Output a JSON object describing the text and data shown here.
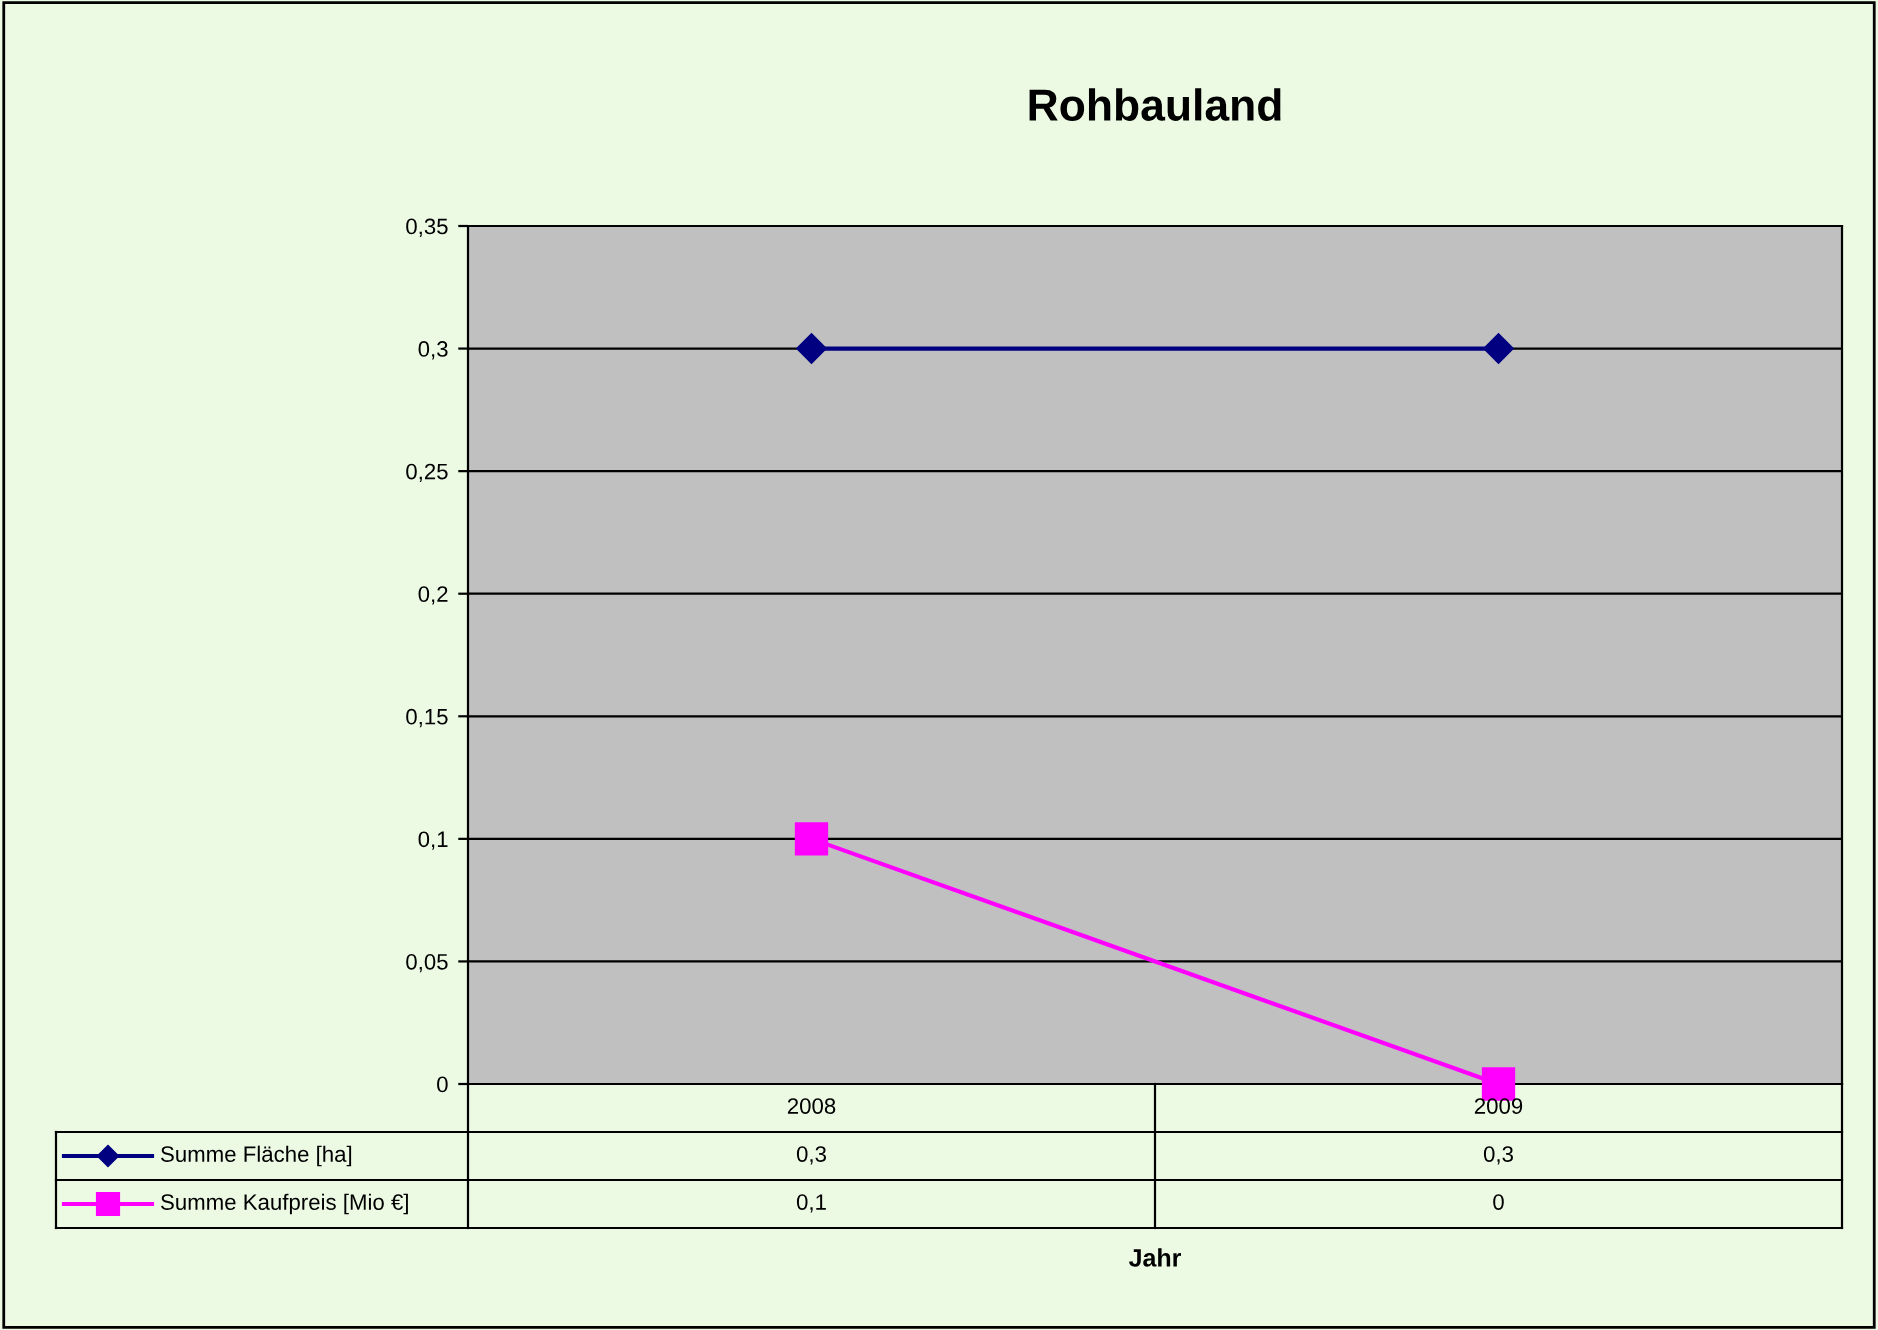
{
  "chart_data": {
    "type": "line",
    "title": "Rohbauland",
    "annotations": [
      "Jahr"
    ],
    "categories": [
      "2008",
      "2009"
    ],
    "series": [
      {
        "name": "Summe Fläche [ha]",
        "color": "#000080",
        "marker": "diamond",
        "values": [
          0.3,
          0.3
        ],
        "value_labels": [
          "0,3",
          "0,3"
        ]
      },
      {
        "name": "Summe Kaufpreis [Mio €]",
        "color": "#ff00ff",
        "marker": "square",
        "values": [
          0.1,
          0
        ],
        "value_labels": [
          "0,1",
          "0"
        ]
      }
    ],
    "ylim": [
      0,
      0.35
    ],
    "yticks": [
      {
        "value": 0,
        "label": "0"
      },
      {
        "value": 0.05,
        "label": "0,05"
      },
      {
        "value": 0.1,
        "label": "0,1"
      },
      {
        "value": 0.15,
        "label": "0,15"
      },
      {
        "value": 0.2,
        "label": "0,2"
      },
      {
        "value": 0.25,
        "label": "0,25"
      },
      {
        "value": 0.3,
        "label": "0,3"
      },
      {
        "value": 0.35,
        "label": "0,35"
      }
    ],
    "grid": "y",
    "legend": "bottom left",
    "line_style": "solid"
  }
}
